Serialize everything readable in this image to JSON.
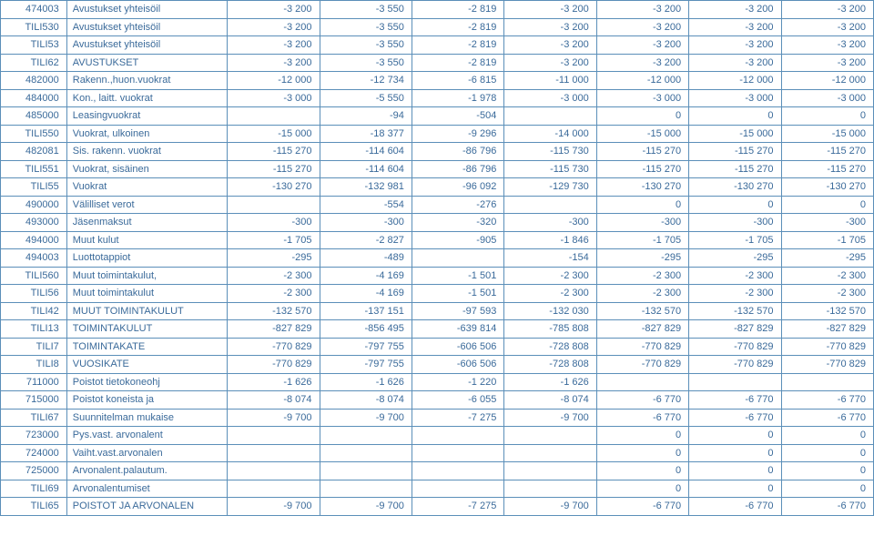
{
  "columns": [
    {
      "key": "code",
      "class": "col-code"
    },
    {
      "key": "label",
      "class": "col-label"
    },
    {
      "key": "v0",
      "class": "col-num"
    },
    {
      "key": "v1",
      "class": "col-num"
    },
    {
      "key": "v2",
      "class": "col-num"
    },
    {
      "key": "v3",
      "class": "col-num"
    },
    {
      "key": "v4",
      "class": "col-num"
    },
    {
      "key": "v5",
      "class": "col-num"
    },
    {
      "key": "v6",
      "class": "col-num"
    }
  ],
  "rows": [
    {
      "code": "474003",
      "label": "Avustukset yhteisöil",
      "v0": "-3 200",
      "v1": "-3 550",
      "v2": "-2 819",
      "v3": "-3 200",
      "v4": "-3 200",
      "v5": "-3 200",
      "v6": "-3 200"
    },
    {
      "code": "TILI530",
      "label": "Avustukset yhteisöil",
      "v0": "-3 200",
      "v1": "-3 550",
      "v2": "-2 819",
      "v3": "-3 200",
      "v4": "-3 200",
      "v5": "-3 200",
      "v6": "-3 200"
    },
    {
      "code": "TILI53",
      "label": "Avustukset yhteisöil",
      "v0": "-3 200",
      "v1": "-3 550",
      "v2": "-2 819",
      "v3": "-3 200",
      "v4": "-3 200",
      "v5": "-3 200",
      "v6": "-3 200"
    },
    {
      "code": "TILI62",
      "label": "AVUSTUKSET",
      "v0": "-3 200",
      "v1": "-3 550",
      "v2": "-2 819",
      "v3": "-3 200",
      "v4": "-3 200",
      "v5": "-3 200",
      "v6": "-3 200"
    },
    {
      "code": "482000",
      "label": "Rakenn.,huon.vuokrat",
      "v0": "-12 000",
      "v1": "-12 734",
      "v2": "-6 815",
      "v3": "-11 000",
      "v4": "-12 000",
      "v5": "-12 000",
      "v6": "-12 000"
    },
    {
      "code": "484000",
      "label": "Kon., laitt. vuokrat",
      "v0": "-3 000",
      "v1": "-5 550",
      "v2": "-1 978",
      "v3": "-3 000",
      "v4": "-3 000",
      "v5": "-3 000",
      "v6": "-3 000"
    },
    {
      "code": "485000",
      "label": "Leasingvuokrat",
      "v0": "",
      "v1": "-94",
      "v2": "-504",
      "v3": "",
      "v4": "0",
      "v5": "0",
      "v6": "0"
    },
    {
      "code": "TILI550",
      "label": "Vuokrat, ulkoinen",
      "v0": "-15 000",
      "v1": "-18 377",
      "v2": "-9 296",
      "v3": "-14 000",
      "v4": "-15 000",
      "v5": "-15 000",
      "v6": "-15 000"
    },
    {
      "code": "482081",
      "label": "Sis. rakenn. vuokrat",
      "v0": "-115 270",
      "v1": "-114 604",
      "v2": "-86 796",
      "v3": "-115 730",
      "v4": "-115 270",
      "v5": "-115 270",
      "v6": "-115 270"
    },
    {
      "code": "TILI551",
      "label": "Vuokrat, sisäinen",
      "v0": "-115 270",
      "v1": "-114 604",
      "v2": "-86 796",
      "v3": "-115 730",
      "v4": "-115 270",
      "v5": "-115 270",
      "v6": "-115 270"
    },
    {
      "code": "TILI55",
      "label": "Vuokrat",
      "v0": "-130 270",
      "v1": "-132 981",
      "v2": "-96 092",
      "v3": "-129 730",
      "v4": "-130 270",
      "v5": "-130 270",
      "v6": "-130 270"
    },
    {
      "code": "490000",
      "label": "Välilliset verot",
      "v0": "",
      "v1": "-554",
      "v2": "-276",
      "v3": "",
      "v4": "0",
      "v5": "0",
      "v6": "0"
    },
    {
      "code": "493000",
      "label": "Jäsenmaksut",
      "v0": "-300",
      "v1": "-300",
      "v2": "-320",
      "v3": "-300",
      "v4": "-300",
      "v5": "-300",
      "v6": "-300"
    },
    {
      "code": "494000",
      "label": "Muut kulut",
      "v0": "-1 705",
      "v1": "-2 827",
      "v2": "-905",
      "v3": "-1 846",
      "v4": "-1 705",
      "v5": "-1 705",
      "v6": "-1 705"
    },
    {
      "code": "494003",
      "label": "Luottotappiot",
      "v0": "-295",
      "v1": "-489",
      "v2": "",
      "v3": "-154",
      "v4": "-295",
      "v5": "-295",
      "v6": "-295"
    },
    {
      "code": "TILI560",
      "label": "Muut toimintakulut,",
      "v0": "-2 300",
      "v1": "-4 169",
      "v2": "-1 501",
      "v3": "-2 300",
      "v4": "-2 300",
      "v5": "-2 300",
      "v6": "-2 300"
    },
    {
      "code": "TILI56",
      "label": "Muut toimintakulut",
      "v0": "-2 300",
      "v1": "-4 169",
      "v2": "-1 501",
      "v3": "-2 300",
      "v4": "-2 300",
      "v5": "-2 300",
      "v6": "-2 300"
    },
    {
      "code": "TILI42",
      "label": "MUUT TOIMINTAKULUT",
      "v0": "-132 570",
      "v1": "-137 151",
      "v2": "-97 593",
      "v3": "-132 030",
      "v4": "-132 570",
      "v5": "-132 570",
      "v6": "-132 570"
    },
    {
      "code": "TILI13",
      "label": "TOIMINTAKULUT",
      "v0": "-827 829",
      "v1": "-856 495",
      "v2": "-639 814",
      "v3": "-785 808",
      "v4": "-827 829",
      "v5": "-827 829",
      "v6": "-827 829"
    },
    {
      "code": "TILI7",
      "label": "TOIMINTAKATE",
      "v0": "-770 829",
      "v1": "-797 755",
      "v2": "-606 506",
      "v3": "-728 808",
      "v4": "-770 829",
      "v5": "-770 829",
      "v6": "-770 829"
    },
    {
      "code": "TILI8",
      "label": "VUOSIKATE",
      "v0": "-770 829",
      "v1": "-797 755",
      "v2": "-606 506",
      "v3": "-728 808",
      "v4": "-770 829",
      "v5": "-770 829",
      "v6": "-770 829"
    },
    {
      "code": "711000",
      "label": "Poistot tietokoneohj",
      "v0": "-1 626",
      "v1": "-1 626",
      "v2": "-1 220",
      "v3": "-1 626",
      "v4": "",
      "v5": "",
      "v6": ""
    },
    {
      "code": "715000",
      "label": "Poistot koneista ja",
      "v0": "-8 074",
      "v1": "-8 074",
      "v2": "-6 055",
      "v3": "-8 074",
      "v4": "-6 770",
      "v5": "-6 770",
      "v6": "-6 770"
    },
    {
      "code": "TILI67",
      "label": "Suunnitelman mukaise",
      "v0": "-9 700",
      "v1": "-9 700",
      "v2": "-7 275",
      "v3": "-9 700",
      "v4": "-6 770",
      "v5": "-6 770",
      "v6": "-6 770"
    },
    {
      "code": "723000",
      "label": "Pys.vast. arvonalent",
      "v0": "",
      "v1": "",
      "v2": "",
      "v3": "",
      "v4": "0",
      "v5": "0",
      "v6": "0"
    },
    {
      "code": "724000",
      "label": "Vaiht.vast.arvonalen",
      "v0": "",
      "v1": "",
      "v2": "",
      "v3": "",
      "v4": "0",
      "v5": "0",
      "v6": "0"
    },
    {
      "code": "725000",
      "label": "Arvonalent.palautum.",
      "v0": "",
      "v1": "",
      "v2": "",
      "v3": "",
      "v4": "0",
      "v5": "0",
      "v6": "0"
    },
    {
      "code": "TILI69",
      "label": "Arvonalentumiset",
      "v0": "",
      "v1": "",
      "v2": "",
      "v3": "",
      "v4": "0",
      "v5": "0",
      "v6": "0"
    },
    {
      "code": "TILI65",
      "label": "POISTOT JA ARVONALEN",
      "v0": "-9 700",
      "v1": "-9 700",
      "v2": "-7 275",
      "v3": "-9 700",
      "v4": "-6 770",
      "v5": "-6 770",
      "v6": "-6 770"
    }
  ]
}
